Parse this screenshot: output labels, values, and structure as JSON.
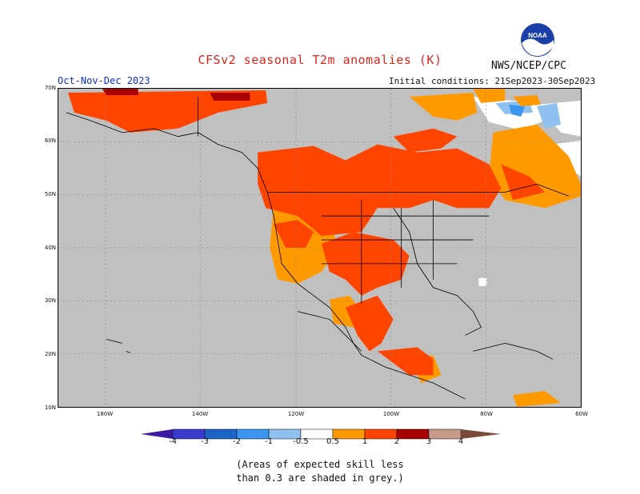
{
  "title": "CFSv2 seasonal T2m anomalies (K)",
  "agency": "NWS/NCEP/CPC",
  "logo_text": "NOAA",
  "season": "Oct-Nov-Dec 2023",
  "initial_conditions": "Initial conditions: 21Sep2023-30Sep2023",
  "lat_labels": [
    "70N",
    "60N",
    "50N",
    "40N",
    "30N",
    "20N",
    "10N"
  ],
  "lon_labels": [
    "180W",
    "140W",
    "120W",
    "100W",
    "80W",
    "60W"
  ],
  "colorbar_ticks": [
    "-4",
    "-3",
    "-2",
    "-1",
    "-0.5",
    "0.5",
    "1",
    "2",
    "3",
    "4"
  ],
  "colors": {
    "no_skill_grey": "#c0c0c0",
    "neutral": "#ffffff",
    "warm_0_5_1": "#ff9900",
    "warm_1_2": "#ff4400",
    "warm_2_3": "#a80000",
    "warm_3_4": "#c89a8a",
    "warm_gt4": "#7a4a3a",
    "cool_0_5_1": "#8ec0f0",
    "cool_1_2": "#3a96f0",
    "cool_2_3": "#1e64c8",
    "cool_3_4": "#3a3ad0",
    "cool_lt4": "#3a1aa0"
  },
  "note_line1": "(Areas of expected skill less",
  "note_line2": "than 0.3 are shaded in grey.)"
}
